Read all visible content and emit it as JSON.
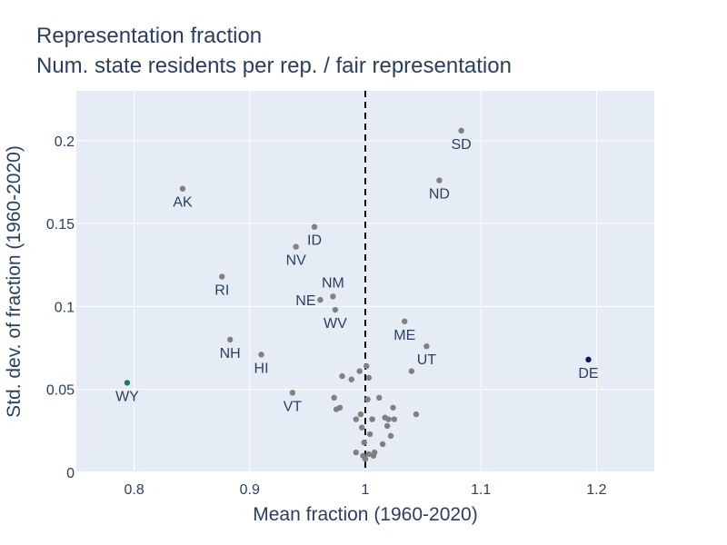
{
  "chart_data": {
    "type": "scatter",
    "title": "Representation fraction",
    "subtitle": "Num. state residents per rep. / fair representation",
    "xlabel": "Mean fraction (1960-2020)",
    "ylabel": "Std. dev. of fraction (1960-2020)",
    "xlim": [
      0.75,
      1.25
    ],
    "ylim": [
      0,
      0.23
    ],
    "x_ticks": [
      0.8,
      0.9,
      1,
      1.1,
      1.2
    ],
    "x_tick_labels": [
      "0.8",
      "0.9",
      "1",
      "1.1",
      "1.2"
    ],
    "y_ticks": [
      0,
      0.05,
      0.1,
      0.15,
      0.2
    ],
    "y_tick_labels": [
      "0",
      "0.05",
      "0.1",
      "0.15",
      "0.2"
    ],
    "reference_line": {
      "x": 1,
      "style": "dashed",
      "color": "#000000"
    },
    "grid": true,
    "plot_bgcolor": "#e5ecf6",
    "colors": {
      "default": "#808080",
      "WY": "#1b7b6b",
      "DE": "#10106b"
    },
    "labeled_points": [
      {
        "label": "SD",
        "x": 1.083,
        "y": 0.206
      },
      {
        "label": "ND",
        "x": 1.064,
        "y": 0.176
      },
      {
        "label": "AK",
        "x": 0.842,
        "y": 0.171
      },
      {
        "label": "ID",
        "x": 0.956,
        "y": 0.148
      },
      {
        "label": "NV",
        "x": 0.94,
        "y": 0.136
      },
      {
        "label": "RI",
        "x": 0.876,
        "y": 0.118
      },
      {
        "label": "NM",
        "x": 0.972,
        "y": 0.106
      },
      {
        "label": "NE",
        "x": 0.961,
        "y": 0.104
      },
      {
        "label": "WV",
        "x": 0.974,
        "y": 0.098
      },
      {
        "label": "ME",
        "x": 1.034,
        "y": 0.091
      },
      {
        "label": "UT",
        "x": 1.053,
        "y": 0.076
      },
      {
        "label": "NH",
        "x": 0.883,
        "y": 0.08
      },
      {
        "label": "HI",
        "x": 0.91,
        "y": 0.071
      },
      {
        "label": "DE",
        "x": 1.193,
        "y": 0.068
      },
      {
        "label": "WY",
        "x": 0.794,
        "y": 0.054
      },
      {
        "label": "VT",
        "x": 0.937,
        "y": 0.048
      }
    ],
    "unlabeled_points": [
      {
        "x": 0.995,
        "y": 0.061
      },
      {
        "x": 1.04,
        "y": 0.061
      },
      {
        "x": 0.98,
        "y": 0.058
      },
      {
        "x": 0.988,
        "y": 0.056
      },
      {
        "x": 1.001,
        "y": 0.064
      },
      {
        "x": 1.003,
        "y": 0.057
      },
      {
        "x": 0.973,
        "y": 0.045
      },
      {
        "x": 1.012,
        "y": 0.045
      },
      {
        "x": 1.002,
        "y": 0.044
      },
      {
        "x": 0.975,
        "y": 0.038
      },
      {
        "x": 0.978,
        "y": 0.039
      },
      {
        "x": 1.024,
        "y": 0.039
      },
      {
        "x": 1.044,
        "y": 0.035
      },
      {
        "x": 0.996,
        "y": 0.035
      },
      {
        "x": 0.992,
        "y": 0.032
      },
      {
        "x": 1.006,
        "y": 0.032
      },
      {
        "x": 1.017,
        "y": 0.033
      },
      {
        "x": 1.02,
        "y": 0.032
      },
      {
        "x": 1.025,
        "y": 0.032
      },
      {
        "x": 0.997,
        "y": 0.027
      },
      {
        "x": 1.019,
        "y": 0.028
      },
      {
        "x": 1.004,
        "y": 0.023
      },
      {
        "x": 1.022,
        "y": 0.022
      },
      {
        "x": 0.999,
        "y": 0.018
      },
      {
        "x": 1.015,
        "y": 0.017
      },
      {
        "x": 0.992,
        "y": 0.012
      },
      {
        "x": 1.003,
        "y": 0.011
      },
      {
        "x": 1.008,
        "y": 0.012
      },
      {
        "x": 1.007,
        "y": 0.01
      },
      {
        "x": 0.998,
        "y": 0.01
      },
      {
        "x": 1.0,
        "y": 0.008
      }
    ]
  }
}
